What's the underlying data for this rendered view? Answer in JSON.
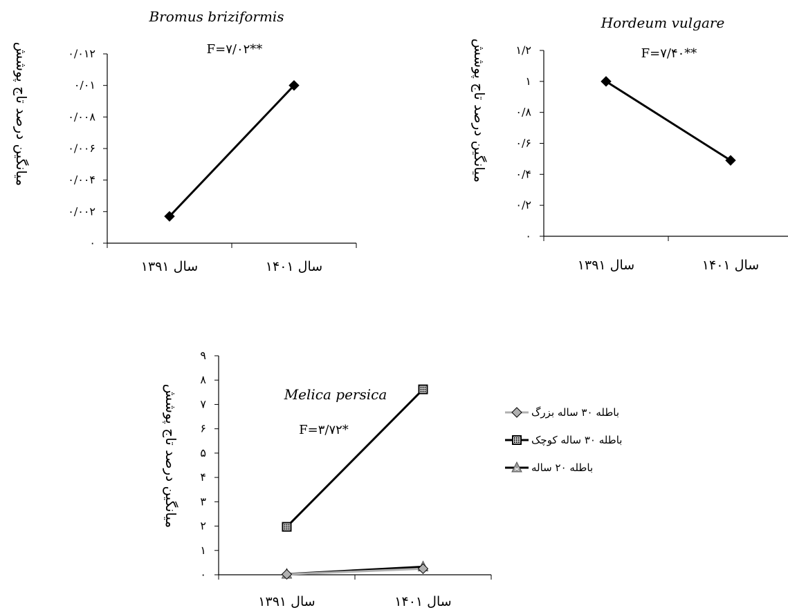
{
  "chart_data": [
    {
      "type": "line",
      "title": "Bromus briziformis",
      "annotation": "F=۷/۰۲**",
      "ylabel": "میانگین درصد تاج پوشش",
      "categories": [
        "سال ۱۳۹۱",
        "سال ۱۴۰۱"
      ],
      "ylim": [
        0,
        0.012
      ],
      "yticks": [
        0,
        0.002,
        0.004,
        0.006,
        0.008,
        0.01,
        0.012
      ],
      "ytick_labels": [
        "۰",
        "۰/۰۰۲",
        "۰/۰۰۴",
        "۰/۰۰۶",
        "۰/۰۰۸",
        "۰/۰۱",
        "۰/۰۱۲"
      ],
      "series": [
        {
          "values": [
            0.0017,
            0.01
          ],
          "color": "#000000",
          "marker": "diamond"
        }
      ]
    },
    {
      "type": "line",
      "title": "Hordeum vulgare",
      "annotation": "F=۷/۴۰**",
      "ylabel": "میانگین درصد تاج پوشش",
      "categories": [
        "سال ۱۳۹۱",
        "سال ۱۴۰۱"
      ],
      "ylim": [
        0,
        1.2
      ],
      "yticks": [
        0,
        0.2,
        0.4,
        0.6,
        0.8,
        1,
        1.2
      ],
      "ytick_labels": [
        "۰",
        "۰/۲",
        "۰/۴",
        "۰/۶",
        "۰/۸",
        "۱",
        "۱/۲"
      ],
      "series": [
        {
          "values": [
            1.0,
            0.49
          ],
          "color": "#000000",
          "marker": "diamond"
        }
      ]
    },
    {
      "type": "line",
      "title": "Melica persica",
      "annotation": "F=۳/۷۲*",
      "ylabel": "میانگین درصد تاج پوشش",
      "categories": [
        "سال ۱۳۹۱",
        "سال ۱۴۰۱"
      ],
      "ylim": [
        0,
        9
      ],
      "yticks": [
        0,
        1,
        2,
        3,
        4,
        5,
        6,
        7,
        8,
        9
      ],
      "ytick_labels": [
        "۰",
        "۱",
        "۲",
        "۳",
        "۴",
        "۵",
        "۶",
        "۷",
        "۸",
        "۹"
      ],
      "legend": "right",
      "series": [
        {
          "name": "باطله ۳۰ ساله بزرگ",
          "values": [
            0.02,
            0.25
          ],
          "color": "#b0b0b0",
          "marker": "diamond"
        },
        {
          "name": "باطله ۳۰ ساله کوچک",
          "values": [
            1.97,
            7.62
          ],
          "color": "#000000",
          "marker": "square-dotted"
        },
        {
          "name": "باطله ۲۰ ساله",
          "values": [
            0.03,
            0.33
          ],
          "color": "#000000",
          "marker": "triangle"
        }
      ]
    }
  ]
}
